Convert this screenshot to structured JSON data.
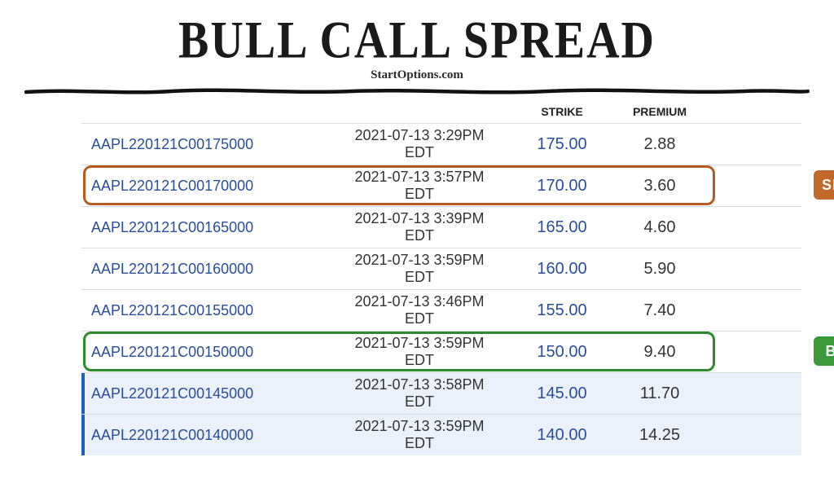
{
  "title": "BULL CALL SPREAD",
  "subtitle": "StartOptions.com",
  "headers": {
    "strike": "STRIKE",
    "premium": "PREMIUM"
  },
  "badges": {
    "sell": "SELL",
    "buy": "BUY"
  },
  "colors": {
    "link": "#2a4d9b",
    "sell_border": "#b65a1e",
    "buy_border": "#2e8a2e",
    "sell_badge": "#c0692a",
    "buy_badge": "#3a9a3a",
    "itm_bg": "#eaf1fa",
    "itm_bar": "#1f5fbf",
    "row_border": "#d9dde2"
  },
  "rows": [
    {
      "symbol": "AAPL220121C00175000",
      "date": "2021-07-13 3:29PM",
      "tz": "EDT",
      "strike": "175.00",
      "premium": "2.88",
      "itm": false
    },
    {
      "symbol": "AAPL220121C00170000",
      "date": "2021-07-13 3:57PM",
      "tz": "EDT",
      "strike": "170.00",
      "premium": "3.60",
      "itm": false
    },
    {
      "symbol": "AAPL220121C00165000",
      "date": "2021-07-13 3:39PM",
      "tz": "EDT",
      "strike": "165.00",
      "premium": "4.60",
      "itm": false
    },
    {
      "symbol": "AAPL220121C00160000",
      "date": "2021-07-13 3:59PM",
      "tz": "EDT",
      "strike": "160.00",
      "premium": "5.90",
      "itm": false
    },
    {
      "symbol": "AAPL220121C00155000",
      "date": "2021-07-13 3:46PM",
      "tz": "EDT",
      "strike": "155.00",
      "premium": "7.40",
      "itm": false
    },
    {
      "symbol": "AAPL220121C00150000",
      "date": "2021-07-13 3:59PM",
      "tz": "EDT",
      "strike": "150.00",
      "premium": "9.40",
      "itm": false
    },
    {
      "symbol": "AAPL220121C00145000",
      "date": "2021-07-13 3:58PM",
      "tz": "EDT",
      "strike": "145.00",
      "premium": "11.70",
      "itm": true
    },
    {
      "symbol": "AAPL220121C00140000",
      "date": "2021-07-13 3:59PM",
      "tz": "EDT",
      "strike": "140.00",
      "premium": "14.25",
      "itm": true
    }
  ],
  "highlight": {
    "sell_row_index": 1,
    "buy_row_index": 5
  }
}
